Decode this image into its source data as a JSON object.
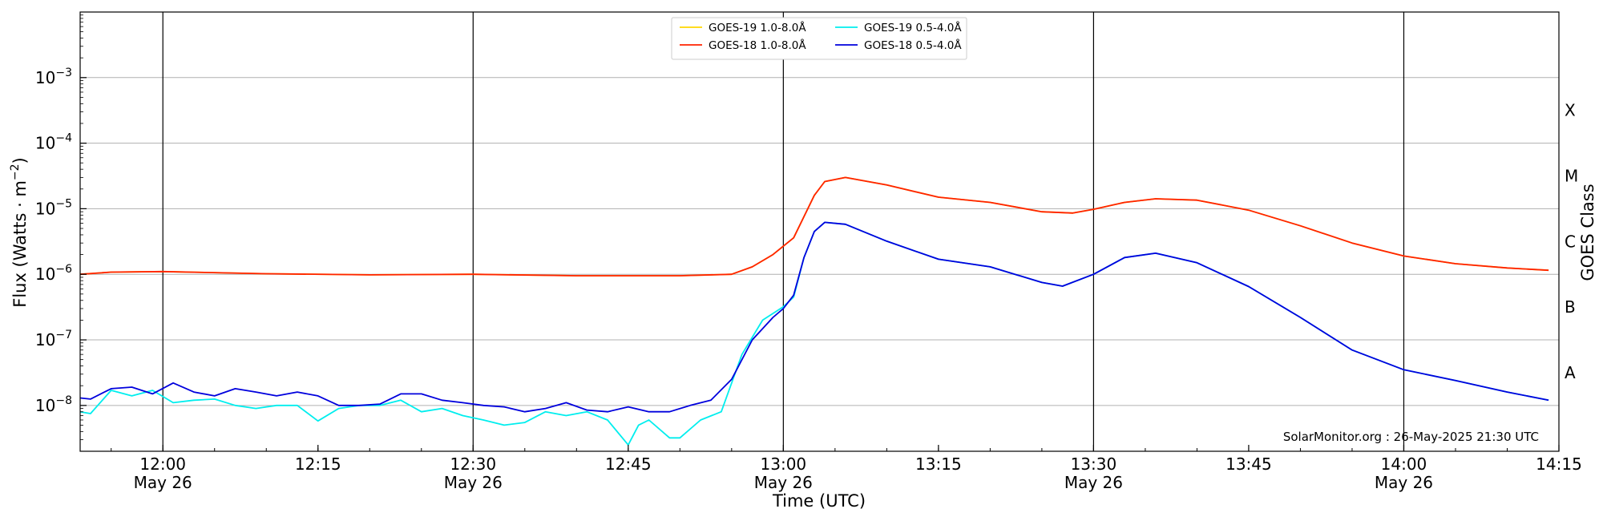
{
  "chart_data": {
    "type": "line",
    "xlabel": "Time (UTC)",
    "ylabel": "Flux (Watts · m",
    "ylabel_exponent": "−2",
    "ylabel_close": ")",
    "right_label": "GOES Class",
    "y_scale": "log",
    "ylim": [
      2e-09,
      0.01
    ],
    "xlim": [
      "11:52",
      "14:15"
    ],
    "grid": "horizontal",
    "legend_position": "top-center",
    "credit": "SolarMonitor.org : 26-May-2025 21:30 UTC",
    "x_ticks": [
      {
        "time": "12:00",
        "line1": "12:00",
        "line2": "May 26"
      },
      {
        "time": "12:15",
        "line1": "12:15",
        "line2": ""
      },
      {
        "time": "12:30",
        "line1": "12:30",
        "line2": "May 26"
      },
      {
        "time": "12:45",
        "line1": "12:45",
        "line2": ""
      },
      {
        "time": "13:00",
        "line1": "13:00",
        "line2": "May 26"
      },
      {
        "time": "13:15",
        "line1": "13:15",
        "line2": ""
      },
      {
        "time": "13:30",
        "line1": "13:30",
        "line2": "May 26"
      },
      {
        "time": "13:45",
        "line1": "13:45",
        "line2": ""
      },
      {
        "time": "14:00",
        "line1": "14:00",
        "line2": "May 26"
      },
      {
        "time": "14:15",
        "line1": "14:15",
        "line2": ""
      }
    ],
    "vlines": [
      "12:00",
      "12:30",
      "13:00",
      "13:30",
      "14:00"
    ],
    "y_ticks": [
      {
        "value": 1e-08,
        "base": "10",
        "exp": "−8"
      },
      {
        "value": 1e-07,
        "base": "10",
        "exp": "−7"
      },
      {
        "value": 1e-06,
        "base": "10",
        "exp": "−6"
      },
      {
        "value": 1e-05,
        "base": "10",
        "exp": "−5"
      },
      {
        "value": 0.0001,
        "base": "10",
        "exp": "−4"
      },
      {
        "value": 0.001,
        "base": "10",
        "exp": "−3"
      }
    ],
    "goes_classes": [
      {
        "label": "A",
        "value": 1e-08
      },
      {
        "label": "B",
        "value": 1e-07
      },
      {
        "label": "C",
        "value": 1e-06
      },
      {
        "label": "M",
        "value": 1e-05
      },
      {
        "label": "X",
        "value": 0.0001
      }
    ],
    "series": [
      {
        "name": "GOES-19 1.0-8.0Å",
        "color": "#ffd700",
        "x": [
          "11:52",
          "11:55",
          "12:00",
          "12:10",
          "12:20",
          "12:30",
          "12:40",
          "12:50",
          "12:55",
          "12:57",
          "12:59",
          "13:01",
          "13:03",
          "13:04",
          "13:06",
          "13:10",
          "13:15",
          "13:20",
          "13:25",
          "13:28",
          "13:30",
          "13:33",
          "13:36",
          "13:40",
          "13:45",
          "13:50",
          "13:55",
          "14:00",
          "14:05",
          "14:10",
          "14:14"
        ],
        "values": [
          1e-06,
          1.08e-06,
          1.1e-06,
          1.02e-06,
          9.8e-07,
          1e-06,
          9.5e-07,
          9.5e-07,
          1e-06,
          1.3e-06,
          2e-06,
          3.6e-06,
          1.6e-05,
          2.6e-05,
          3e-05,
          2.3e-05,
          1.5e-05,
          1.25e-05,
          9e-06,
          8.6e-06,
          9.8e-06,
          1.25e-05,
          1.42e-05,
          1.35e-05,
          9.5e-06,
          5.5e-06,
          3e-06,
          1.9e-06,
          1.45e-06,
          1.25e-06,
          1.15e-06
        ]
      },
      {
        "name": "GOES-18 1.0-8.0Å",
        "color": "#ff2200",
        "x": [
          "11:52",
          "11:55",
          "12:00",
          "12:10",
          "12:20",
          "12:30",
          "12:40",
          "12:50",
          "12:55",
          "12:57",
          "12:59",
          "13:01",
          "13:03",
          "13:04",
          "13:06",
          "13:10",
          "13:15",
          "13:20",
          "13:25",
          "13:28",
          "13:30",
          "13:33",
          "13:36",
          "13:40",
          "13:45",
          "13:50",
          "13:55",
          "14:00",
          "14:05",
          "14:10",
          "14:14"
        ],
        "values": [
          1e-06,
          1.08e-06,
          1.1e-06,
          1.02e-06,
          9.8e-07,
          1e-06,
          9.5e-07,
          9.5e-07,
          1e-06,
          1.3e-06,
          2e-06,
          3.6e-06,
          1.6e-05,
          2.6e-05,
          3e-05,
          2.3e-05,
          1.5e-05,
          1.25e-05,
          9e-06,
          8.6e-06,
          9.8e-06,
          1.25e-05,
          1.42e-05,
          1.35e-05,
          9.5e-06,
          5.5e-06,
          3e-06,
          1.9e-06,
          1.45e-06,
          1.25e-06,
          1.15e-06
        ]
      },
      {
        "name": "GOES-19 0.5-4.0Å",
        "color": "#00eeee",
        "x": [
          "11:52",
          "11:53",
          "11:55",
          "11:57",
          "11:59",
          "12:01",
          "12:03",
          "12:05",
          "12:07",
          "12:09",
          "12:11",
          "12:13",
          "12:15",
          "12:17",
          "12:19",
          "12:21",
          "12:23",
          "12:25",
          "12:27",
          "12:29",
          "12:31",
          "12:33",
          "12:35",
          "12:37",
          "12:39",
          "12:41",
          "12:43",
          "12:45",
          "12:46",
          "12:47",
          "12:49",
          "12:50",
          "12:52",
          "12:54",
          "12:56",
          "12:58",
          "13:00",
          "13:01",
          "13:02",
          "13:03",
          "13:04",
          "13:06",
          "13:10",
          "13:15",
          "13:20",
          "13:25",
          "13:27",
          "13:30",
          "13:33",
          "13:36",
          "13:40",
          "13:45",
          "13:50",
          "13:55",
          "14:00",
          "14:05",
          "14:10",
          "14:14"
        ],
        "values": [
          8e-09,
          7.5e-09,
          1.7e-08,
          1.4e-08,
          1.7e-08,
          1.1e-08,
          1.2e-08,
          1.25e-08,
          1e-08,
          9e-09,
          1e-08,
          1e-08,
          5.8e-09,
          9e-09,
          1e-08,
          1e-08,
          1.2e-08,
          8e-09,
          9e-09,
          7e-09,
          6e-09,
          5e-09,
          5.5e-09,
          8e-09,
          7e-09,
          8e-09,
          6e-09,
          2.5e-09,
          5e-09,
          6e-09,
          3.2e-09,
          3.2e-09,
          6e-09,
          8e-09,
          6e-08,
          2e-07,
          3.2e-07,
          4.5e-07,
          1.8e-06,
          4.5e-06,
          6.2e-06,
          5.8e-06,
          3.2e-06,
          1.7e-06,
          1.3e-06,
          7.5e-07,
          6.6e-07,
          1e-06,
          1.8e-06,
          2.1e-06,
          1.5e-06,
          6.5e-07,
          2.2e-07,
          7e-08,
          3.5e-08,
          2.4e-08,
          1.6e-08,
          1.2e-08
        ]
      },
      {
        "name": "GOES-18 0.5-4.0Å",
        "color": "#0000dd",
        "x": [
          "11:52",
          "11:53",
          "11:55",
          "11:57",
          "11:59",
          "12:01",
          "12:03",
          "12:05",
          "12:07",
          "12:09",
          "12:11",
          "12:13",
          "12:15",
          "12:17",
          "12:19",
          "12:21",
          "12:23",
          "12:25",
          "12:27",
          "12:29",
          "12:31",
          "12:33",
          "12:35",
          "12:37",
          "12:39",
          "12:41",
          "12:43",
          "12:45",
          "12:47",
          "12:49",
          "12:51",
          "12:53",
          "12:55",
          "12:57",
          "12:59",
          "13:00",
          "13:01",
          "13:02",
          "13:03",
          "13:04",
          "13:06",
          "13:10",
          "13:15",
          "13:20",
          "13:25",
          "13:27",
          "13:30",
          "13:33",
          "13:36",
          "13:40",
          "13:45",
          "13:50",
          "13:55",
          "14:00",
          "14:05",
          "14:10",
          "14:14"
        ],
        "values": [
          1.3e-08,
          1.25e-08,
          1.8e-08,
          1.9e-08,
          1.5e-08,
          2.2e-08,
          1.6e-08,
          1.4e-08,
          1.8e-08,
          1.6e-08,
          1.4e-08,
          1.6e-08,
          1.4e-08,
          1e-08,
          1e-08,
          1.05e-08,
          1.5e-08,
          1.5e-08,
          1.2e-08,
          1.1e-08,
          1e-08,
          9.5e-09,
          8e-09,
          9e-09,
          1.1e-08,
          8.5e-09,
          8e-09,
          9.5e-09,
          8e-09,
          8e-09,
          1e-08,
          1.2e-08,
          2.5e-08,
          1e-07,
          2.2e-07,
          3e-07,
          4.8e-07,
          1.8e-06,
          4.5e-06,
          6.2e-06,
          5.8e-06,
          3.2e-06,
          1.7e-06,
          1.3e-06,
          7.5e-07,
          6.6e-07,
          1e-06,
          1.8e-06,
          2.1e-06,
          1.5e-06,
          6.5e-07,
          2.2e-07,
          7e-08,
          3.5e-08,
          2.4e-08,
          1.6e-08,
          1.2e-08
        ]
      }
    ]
  }
}
